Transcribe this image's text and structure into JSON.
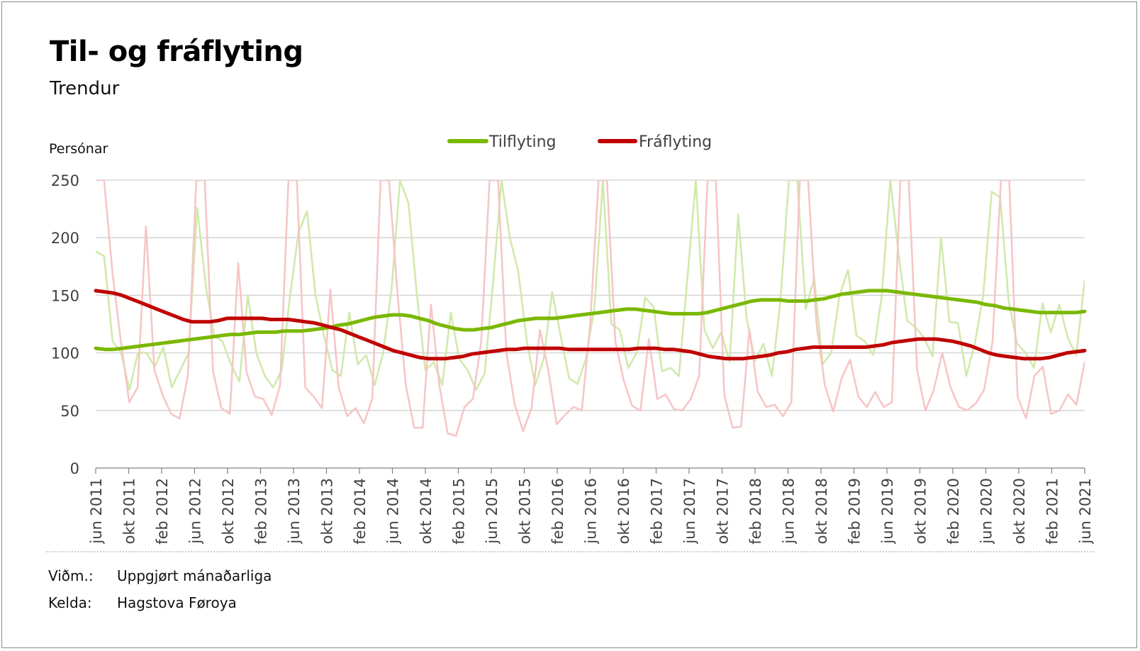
{
  "title": "Til- og fráflyting",
  "subtitle": "Trendur",
  "notes": [
    {
      "label": "Viðm.:",
      "text": "Uppgjørt mánaðarliga"
    },
    {
      "label": "Kelda:",
      "text": "Hagstova Føroya"
    }
  ],
  "chart_data": {
    "type": "line",
    "ylabel": "Persónar",
    "ylim": [
      0,
      250
    ],
    "yticks": [
      0,
      50,
      100,
      150,
      200,
      250
    ],
    "legend_position": "top-center",
    "x_start": "2011-06",
    "x_end": "2021-06",
    "x_tick_labels": [
      "jun 2011",
      "okt 2011",
      "feb 2012",
      "jun 2012",
      "okt 2012",
      "feb 2013",
      "jun 2013",
      "okt 2013",
      "feb 2014",
      "jun 2014",
      "okt 2014",
      "feb 2015",
      "jun 2015",
      "okt 2015",
      "feb 2016",
      "jun 2016",
      "okt 2016",
      "feb 2017",
      "jun 2017",
      "okt 2017",
      "feb 2018",
      "jun 2018",
      "okt 2018",
      "feb 2019",
      "jun 2019",
      "okt 2019",
      "feb 2020",
      "jun 2020",
      "okt 2020",
      "feb 2021",
      "jun 2021"
    ],
    "grid": true,
    "series": [
      {
        "name": "Tilflyting",
        "kind": "trend",
        "color": "#7ab800",
        "values": [
          104,
          103,
          103,
          104,
          105,
          106,
          107,
          108,
          109,
          110,
          111,
          112,
          113,
          114,
          115,
          116,
          116,
          117,
          118,
          118,
          118,
          119,
          119,
          119,
          120,
          121,
          122,
          124,
          125,
          127,
          129,
          131,
          132,
          133,
          133,
          132,
          130,
          128,
          125,
          123,
          121,
          120,
          120,
          121,
          122,
          124,
          126,
          128,
          129,
          130,
          130,
          130,
          131,
          132,
          133,
          134,
          135,
          136,
          137,
          138,
          138,
          137,
          136,
          135,
          134,
          134,
          134,
          134,
          135,
          137,
          139,
          141,
          143,
          145,
          146,
          146,
          146,
          145,
          145,
          145,
          146,
          147,
          149,
          151,
          152,
          153,
          154,
          154,
          154,
          153,
          152,
          151,
          150,
          149,
          148,
          147,
          146,
          145,
          144,
          142,
          141,
          139,
          138,
          137,
          136,
          135,
          135,
          135,
          135,
          135,
          136
        ]
      },
      {
        "name": "Fráflyting",
        "kind": "trend",
        "color": "#c00000",
        "values": [
          154,
          153,
          152,
          150,
          147,
          144,
          141,
          138,
          135,
          132,
          129,
          127,
          127,
          127,
          128,
          130,
          130,
          130,
          130,
          130,
          129,
          129,
          129,
          128,
          127,
          126,
          124,
          122,
          120,
          117,
          114,
          111,
          108,
          105,
          102,
          100,
          98,
          96,
          95,
          95,
          95,
          96,
          97,
          99,
          100,
          101,
          102,
          103,
          103,
          104,
          104,
          104,
          104,
          104,
          103,
          103,
          103,
          103,
          103,
          103,
          103,
          103,
          104,
          104,
          104,
          103,
          103,
          102,
          101,
          99,
          97,
          96,
          95,
          95,
          95,
          96,
          97,
          98,
          100,
          101,
          103,
          104,
          105,
          105,
          105,
          105,
          105,
          105,
          105,
          106,
          107,
          109,
          110,
          111,
          112,
          112,
          112,
          111,
          110,
          108,
          106,
          103,
          100,
          98,
          97,
          96,
          95,
          95,
          95,
          96,
          98,
          100,
          101,
          102
        ]
      },
      {
        "name": "Tilflyting",
        "kind": "monthly",
        "color": "#cfe8a8",
        "values": [
          188,
          184,
          110,
          100,
          68,
          100,
          100,
          88,
          105,
          70,
          85,
          100,
          226,
          160,
          115,
          110,
          90,
          75,
          150,
          100,
          80,
          70,
          85,
          150,
          205,
          223,
          150,
          115,
          85,
          80,
          135,
          90,
          98,
          72,
          100,
          155,
          255,
          230,
          150,
          85,
          92,
          72,
          135,
          95,
          85,
          68,
          82,
          160,
          260,
          200,
          170,
          110,
          72,
          95,
          153,
          115,
          78,
          73,
          95,
          140,
          255,
          125,
          120,
          87,
          100,
          148,
          140,
          84,
          87,
          80,
          165,
          260,
          120,
          104,
          118,
          92,
          220,
          130,
          93,
          108,
          80,
          145,
          260,
          260,
          138,
          165,
          90,
          100,
          150,
          172,
          115,
          110,
          98,
          150,
          258,
          185,
          128,
          122,
          113,
          97,
          200,
          127,
          126,
          80,
          108,
          150,
          240,
          235,
          145,
          108,
          100,
          87,
          143,
          118,
          142,
          113,
          98,
          163
        ],
        "values_note": "monthly values, clipped at 250 by the axis"
      },
      {
        "name": "Fráflyting",
        "kind": "monthly",
        "color": "#f5c3c3",
        "values": [
          260,
          300,
          170,
          110,
          57,
          70,
          210,
          85,
          63,
          47,
          43,
          80,
          300,
          320,
          84,
          52,
          47,
          178,
          83,
          62,
          60,
          46,
          72,
          300,
          320,
          70,
          62,
          52,
          155,
          70,
          45,
          52,
          39,
          60,
          255,
          290,
          152,
          72,
          35,
          35,
          142,
          72,
          30,
          28,
          53,
          60,
          110,
          300,
          300,
          100,
          55,
          32,
          52,
          120,
          85,
          38,
          46,
          53,
          50,
          125,
          300,
          300,
          110,
          76,
          54,
          50,
          112,
          60,
          64,
          51,
          50,
          60,
          80,
          300,
          300,
          63,
          35,
          36,
          120,
          66,
          53,
          55,
          45,
          57,
          300,
          300,
          125,
          72,
          49,
          78,
          94,
          62,
          53,
          66,
          53,
          57,
          300,
          280,
          85,
          50,
          68,
          100,
          70,
          53,
          50,
          56,
          68,
          110,
          300,
          280,
          62,
          43,
          80,
          88,
          47,
          50,
          64,
          55,
          92
        ],
        "values_note": "monthly values, clipped at 250 by the axis"
      }
    ]
  }
}
